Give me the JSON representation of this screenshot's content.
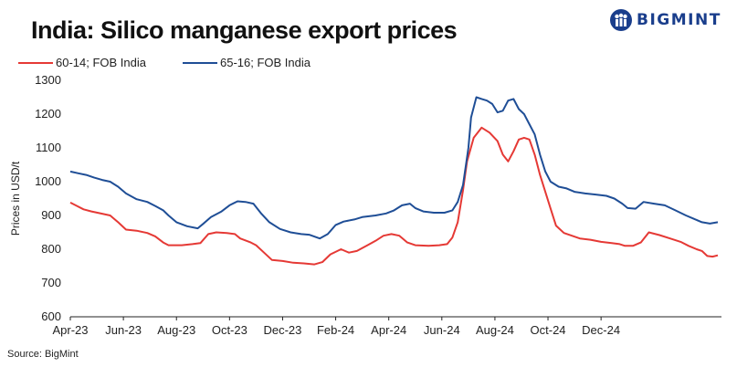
{
  "header": {
    "title": "India: Silico manganese export prices",
    "logo_text": "BIGMINT"
  },
  "source": "Source: BigMint",
  "colors": {
    "series1": "#e53935",
    "series2": "#1f4e96",
    "logo": "#1a3e8c"
  },
  "chart_data": {
    "type": "line",
    "title": "India: Silico manganese export prices",
    "xlabel": "",
    "ylabel": "Prices in USD/t",
    "ylim": [
      600,
      1300
    ],
    "yticks": [
      "1300",
      "1200",
      "1100",
      "1000",
      "900",
      "800",
      "700",
      "600"
    ],
    "xticks": [
      "Apr-23",
      "Jun-23",
      "Aug-23",
      "Oct-23",
      "Dec-23",
      "Feb-24",
      "Apr-24",
      "Jun-24",
      "Aug-24",
      "Oct-24",
      "Dec-24"
    ],
    "x_unit": "months since Apr-23",
    "grid": false,
    "legend": "top-left",
    "series": [
      {
        "name": "60-14; FOB India",
        "color": "#e53935",
        "points": [
          [
            0,
            938
          ],
          [
            0.25,
            928
          ],
          [
            0.5,
            918
          ],
          [
            0.8,
            912
          ],
          [
            1.2,
            905
          ],
          [
            1.5,
            900
          ],
          [
            1.8,
            880
          ],
          [
            2.1,
            858
          ],
          [
            2.5,
            855
          ],
          [
            2.9,
            848
          ],
          [
            3.2,
            838
          ],
          [
            3.5,
            820
          ],
          [
            3.7,
            812
          ],
          [
            4.2,
            812
          ],
          [
            4.6,
            815
          ],
          [
            4.9,
            818
          ],
          [
            5.2,
            845
          ],
          [
            5.5,
            850
          ],
          [
            5.9,
            848
          ],
          [
            6.2,
            845
          ],
          [
            6.4,
            832
          ],
          [
            6.8,
            820
          ],
          [
            7.0,
            812
          ],
          [
            7.3,
            790
          ],
          [
            7.6,
            768
          ],
          [
            8.0,
            765
          ],
          [
            8.4,
            760
          ],
          [
            8.8,
            758
          ],
          [
            9.2,
            755
          ],
          [
            9.5,
            762
          ],
          [
            9.8,
            785
          ],
          [
            10.2,
            800
          ],
          [
            10.5,
            790
          ],
          [
            10.8,
            795
          ],
          [
            11.2,
            812
          ],
          [
            11.5,
            825
          ],
          [
            11.8,
            840
          ],
          [
            12.1,
            845
          ],
          [
            12.4,
            840
          ],
          [
            12.7,
            820
          ],
          [
            13.0,
            812
          ],
          [
            13.5,
            810
          ],
          [
            13.9,
            812
          ],
          [
            14.2,
            815
          ],
          [
            14.4,
            835
          ],
          [
            14.6,
            880
          ],
          [
            14.8,
            975
          ],
          [
            14.95,
            1060
          ],
          [
            15.2,
            1130
          ],
          [
            15.5,
            1160
          ],
          [
            15.8,
            1145
          ],
          [
            16.1,
            1120
          ],
          [
            16.3,
            1080
          ],
          [
            16.5,
            1060
          ],
          [
            16.7,
            1090
          ],
          [
            16.9,
            1125
          ],
          [
            17.1,
            1130
          ],
          [
            17.3,
            1125
          ],
          [
            17.5,
            1080
          ],
          [
            17.7,
            1020
          ],
          [
            17.9,
            970
          ],
          [
            18.1,
            920
          ],
          [
            18.3,
            870
          ],
          [
            18.6,
            848
          ],
          [
            18.9,
            840
          ],
          [
            19.2,
            832
          ],
          [
            19.6,
            828
          ],
          [
            20.0,
            822
          ],
          [
            20.4,
            818
          ],
          [
            20.7,
            815
          ],
          [
            20.9,
            810
          ],
          [
            21.2,
            810
          ],
          [
            21.5,
            820
          ],
          [
            21.8,
            850
          ],
          [
            22.2,
            842
          ],
          [
            22.6,
            832
          ],
          [
            23.0,
            822
          ],
          [
            23.3,
            810
          ],
          [
            23.6,
            800
          ],
          [
            23.8,
            795
          ],
          [
            24.0,
            780
          ],
          [
            24.2,
            778
          ],
          [
            24.4,
            782
          ]
        ]
      },
      {
        "name": "65-16; FOB India",
        "color": "#1f4e96",
        "points": [
          [
            0,
            1030
          ],
          [
            0.3,
            1025
          ],
          [
            0.6,
            1020
          ],
          [
            0.9,
            1012
          ],
          [
            1.2,
            1005
          ],
          [
            1.5,
            1000
          ],
          [
            1.8,
            985
          ],
          [
            2.1,
            965
          ],
          [
            2.5,
            948
          ],
          [
            2.9,
            940
          ],
          [
            3.2,
            928
          ],
          [
            3.5,
            915
          ],
          [
            3.7,
            900
          ],
          [
            4.0,
            880
          ],
          [
            4.4,
            868
          ],
          [
            4.8,
            862
          ],
          [
            5.0,
            875
          ],
          [
            5.3,
            895
          ],
          [
            5.7,
            912
          ],
          [
            6.0,
            930
          ],
          [
            6.3,
            942
          ],
          [
            6.6,
            940
          ],
          [
            6.9,
            935
          ],
          [
            7.2,
            905
          ],
          [
            7.5,
            880
          ],
          [
            7.9,
            860
          ],
          [
            8.3,
            850
          ],
          [
            8.7,
            845
          ],
          [
            9.0,
            843
          ],
          [
            9.4,
            832
          ],
          [
            9.7,
            845
          ],
          [
            10.0,
            872
          ],
          [
            10.3,
            882
          ],
          [
            10.7,
            888
          ],
          [
            11.0,
            895
          ],
          [
            11.5,
            900
          ],
          [
            11.9,
            906
          ],
          [
            12.2,
            915
          ],
          [
            12.5,
            930
          ],
          [
            12.8,
            935
          ],
          [
            13.0,
            922
          ],
          [
            13.3,
            912
          ],
          [
            13.7,
            908
          ],
          [
            14.1,
            908
          ],
          [
            14.4,
            915
          ],
          [
            14.6,
            940
          ],
          [
            14.8,
            990
          ],
          [
            15.0,
            1100
          ],
          [
            15.1,
            1190
          ],
          [
            15.3,
            1250
          ],
          [
            15.5,
            1245
          ],
          [
            15.7,
            1240
          ],
          [
            15.9,
            1230
          ],
          [
            16.1,
            1205
          ],
          [
            16.3,
            1210
          ],
          [
            16.5,
            1240
          ],
          [
            16.7,
            1245
          ],
          [
            16.9,
            1215
          ],
          [
            17.1,
            1200
          ],
          [
            17.3,
            1170
          ],
          [
            17.5,
            1140
          ],
          [
            17.7,
            1080
          ],
          [
            17.9,
            1030
          ],
          [
            18.1,
            1000
          ],
          [
            18.4,
            985
          ],
          [
            18.7,
            980
          ],
          [
            19.0,
            970
          ],
          [
            19.4,
            965
          ],
          [
            19.8,
            962
          ],
          [
            20.2,
            958
          ],
          [
            20.5,
            950
          ],
          [
            20.8,
            935
          ],
          [
            21.0,
            922
          ],
          [
            21.3,
            920
          ],
          [
            21.6,
            940
          ],
          [
            22.0,
            935
          ],
          [
            22.4,
            930
          ],
          [
            22.8,
            915
          ],
          [
            23.2,
            900
          ],
          [
            23.5,
            890
          ],
          [
            23.8,
            880
          ],
          [
            24.1,
            876
          ],
          [
            24.4,
            880
          ]
        ]
      }
    ]
  }
}
